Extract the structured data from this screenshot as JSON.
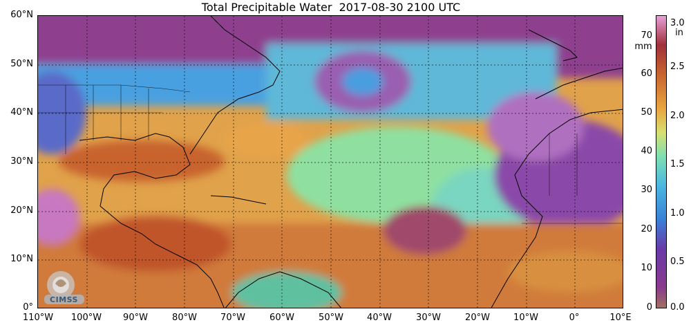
{
  "title": "Total Precipitable Water  2017-08-30 2100 UTC",
  "lat_labels": [
    "60°N",
    "50°N",
    "40°N",
    "30°N",
    "20°N",
    "10°N",
    "0°"
  ],
  "lon_labels": [
    "110°W",
    "100°W",
    "90°W",
    "80°W",
    "70°W",
    "60°W",
    "50°W",
    "40°W",
    "30°W",
    "20°W",
    "10°W",
    "0°",
    "10°E"
  ],
  "colorbar": {
    "mm_unit": "mm",
    "in_unit": "in",
    "mm_ticks": [
      "70",
      "60",
      "50",
      "40",
      "30",
      "20",
      "10",
      "0"
    ],
    "in_ticks": [
      "3.0",
      "2.5",
      "2.0",
      "1.5",
      "1.0",
      "0.5",
      "0.0"
    ]
  },
  "logo_text": "CIMSS",
  "colors": {
    "dry": "#8b3a8c",
    "moist_low": "#3a7fd8",
    "moist_mid": "#7fd8b0",
    "moist_high": "#e8a640",
    "very_moist": "#c0542a",
    "extreme": "#e8a0d8"
  }
}
